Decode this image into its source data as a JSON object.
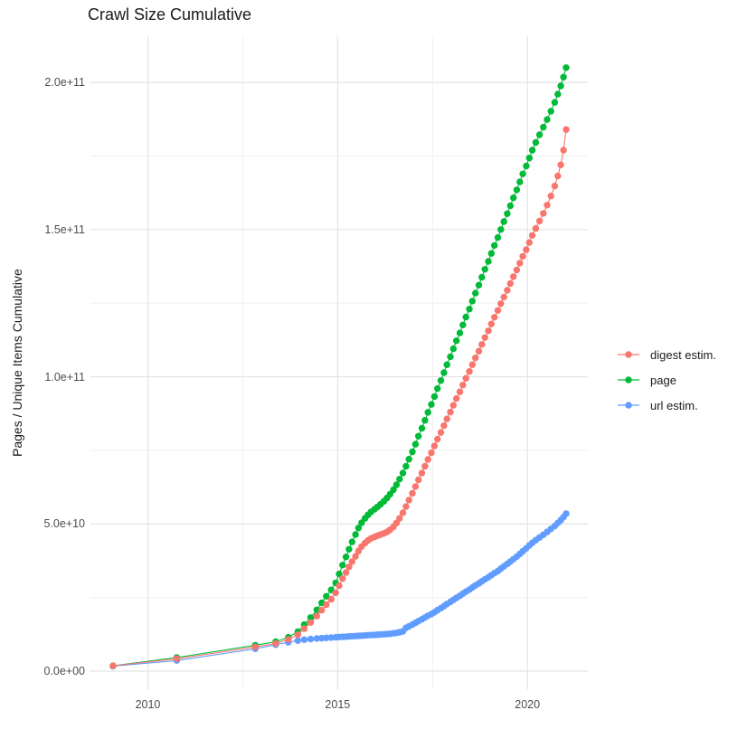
{
  "chart_data": {
    "type": "line",
    "marker": "circle",
    "title": "Crawl Size Cumulative",
    "xlabel": "",
    "ylabel": "Pages / Unique Items Cumulative",
    "unit_note": "point values given in billions (1e9) of pages / unique items",
    "x_unit": "decimal year",
    "xlim": [
      2008.487,
      2021.592
    ],
    "ylim_B": [
      -6.45,
      215.7
    ],
    "grid": {
      "enabled": true,
      "major_color": "#e4e4e4",
      "minor_color": "#efefef"
    },
    "legend_position": "right",
    "x_ticks": {
      "major": [
        2010,
        2015,
        2020
      ],
      "minor": [
        2012.5,
        2017.5
      ],
      "labels": [
        "2010",
        "2015",
        "2020"
      ]
    },
    "y_ticks": {
      "major_B": [
        0,
        50,
        100,
        150,
        200
      ],
      "minor_B": [
        25,
        75,
        125,
        175
      ],
      "labels": [
        "0.0e+00",
        "5.0e+10",
        "1.0e+11",
        "1.5e+11",
        "2.0e+11"
      ]
    },
    "draw_order": [
      1,
      2,
      0
    ],
    "series": [
      {
        "name": "digest estim.",
        "color": "#F8766D",
        "points": [
          [
            2009.08,
            1.8
          ],
          [
            2010.76,
            4.2
          ],
          [
            2012.83,
            8.2
          ],
          [
            2013.37,
            9.4
          ],
          [
            2013.7,
            10.8
          ],
          [
            2013.95,
            12.4
          ],
          [
            2014.12,
            14.4
          ],
          [
            2014.29,
            16.5
          ],
          [
            2014.45,
            18.7
          ],
          [
            2014.58,
            20.7
          ],
          [
            2014.7,
            22.6
          ],
          [
            2014.83,
            24.4
          ],
          [
            2014.95,
            26.6
          ],
          [
            2015.04,
            29.0
          ],
          [
            2015.13,
            31.4
          ],
          [
            2015.22,
            33.5
          ],
          [
            2015.3,
            35.4
          ],
          [
            2015.38,
            37.2
          ],
          [
            2015.47,
            39.0
          ],
          [
            2015.55,
            40.8
          ],
          [
            2015.63,
            42.3
          ],
          [
            2015.72,
            43.5
          ],
          [
            2015.8,
            44.4
          ],
          [
            2015.88,
            45.1
          ],
          [
            2015.97,
            45.6
          ],
          [
            2016.05,
            46.0
          ],
          [
            2016.13,
            46.4
          ],
          [
            2016.22,
            46.8
          ],
          [
            2016.3,
            47.3
          ],
          [
            2016.38,
            48.0
          ],
          [
            2016.47,
            49.0
          ],
          [
            2016.55,
            50.3
          ],
          [
            2016.63,
            51.9
          ],
          [
            2016.72,
            53.8
          ],
          [
            2016.8,
            55.9
          ],
          [
            2016.88,
            58.1
          ],
          [
            2016.97,
            60.4
          ],
          [
            2017.05,
            62.7
          ],
          [
            2017.13,
            65.0
          ],
          [
            2017.22,
            67.3
          ],
          [
            2017.3,
            69.6
          ],
          [
            2017.38,
            71.9
          ],
          [
            2017.47,
            74.2
          ],
          [
            2017.55,
            76.5
          ],
          [
            2017.63,
            78.8
          ],
          [
            2017.72,
            81.1
          ],
          [
            2017.8,
            83.4
          ],
          [
            2017.88,
            85.7
          ],
          [
            2017.97,
            88.0
          ],
          [
            2018.05,
            90.3
          ],
          [
            2018.13,
            92.6
          ],
          [
            2018.22,
            94.9
          ],
          [
            2018.3,
            97.2
          ],
          [
            2018.38,
            99.5
          ],
          [
            2018.47,
            101.8
          ],
          [
            2018.55,
            104.1
          ],
          [
            2018.63,
            106.4
          ],
          [
            2018.72,
            108.7
          ],
          [
            2018.8,
            111.0
          ],
          [
            2018.88,
            113.3
          ],
          [
            2018.97,
            115.6
          ],
          [
            2019.05,
            117.9
          ],
          [
            2019.13,
            120.2
          ],
          [
            2019.22,
            122.5
          ],
          [
            2019.3,
            124.8
          ],
          [
            2019.38,
            127.1
          ],
          [
            2019.47,
            129.4
          ],
          [
            2019.55,
            131.7
          ],
          [
            2019.63,
            134.0
          ],
          [
            2019.72,
            136.3
          ],
          [
            2019.8,
            138.6
          ],
          [
            2019.88,
            140.9
          ],
          [
            2019.97,
            143.2
          ],
          [
            2020.05,
            145.6
          ],
          [
            2020.13,
            148.0
          ],
          [
            2020.22,
            150.4
          ],
          [
            2020.32,
            152.9
          ],
          [
            2020.42,
            155.5
          ],
          [
            2020.52,
            158.3
          ],
          [
            2020.62,
            161.4
          ],
          [
            2020.72,
            164.8
          ],
          [
            2020.8,
            168.2
          ],
          [
            2020.88,
            172.0
          ],
          [
            2020.95,
            177.0
          ],
          [
            2021.02,
            184.0
          ]
        ]
      },
      {
        "name": "page",
        "color": "#00BA38",
        "points": [
          [
            2009.08,
            1.8
          ],
          [
            2010.76,
            4.6
          ],
          [
            2012.83,
            8.8
          ],
          [
            2013.37,
            10.0
          ],
          [
            2013.7,
            11.5
          ],
          [
            2013.95,
            13.4
          ],
          [
            2014.12,
            15.8
          ],
          [
            2014.29,
            18.2
          ],
          [
            2014.45,
            20.8
          ],
          [
            2014.58,
            23.2
          ],
          [
            2014.7,
            25.4
          ],
          [
            2014.83,
            27.6
          ],
          [
            2014.95,
            30.0
          ],
          [
            2015.04,
            33.0
          ],
          [
            2015.13,
            36.0
          ],
          [
            2015.22,
            38.8
          ],
          [
            2015.3,
            41.4
          ],
          [
            2015.38,
            43.9
          ],
          [
            2015.47,
            46.4
          ],
          [
            2015.55,
            48.6
          ],
          [
            2015.63,
            50.4
          ],
          [
            2015.72,
            51.9
          ],
          [
            2015.8,
            53.1
          ],
          [
            2015.88,
            54.1
          ],
          [
            2015.97,
            55.0
          ],
          [
            2016.05,
            55.8
          ],
          [
            2016.13,
            56.7
          ],
          [
            2016.22,
            57.7
          ],
          [
            2016.3,
            58.8
          ],
          [
            2016.38,
            60.1
          ],
          [
            2016.47,
            61.6
          ],
          [
            2016.55,
            63.3
          ],
          [
            2016.63,
            65.2
          ],
          [
            2016.72,
            67.3
          ],
          [
            2016.8,
            69.6
          ],
          [
            2016.88,
            72.0
          ],
          [
            2016.97,
            74.5
          ],
          [
            2017.05,
            77.1
          ],
          [
            2017.13,
            79.8
          ],
          [
            2017.22,
            82.5
          ],
          [
            2017.3,
            85.2
          ],
          [
            2017.38,
            87.9
          ],
          [
            2017.47,
            90.6
          ],
          [
            2017.55,
            93.3
          ],
          [
            2017.63,
            96.0
          ],
          [
            2017.72,
            98.7
          ],
          [
            2017.8,
            101.4
          ],
          [
            2017.88,
            104.1
          ],
          [
            2017.97,
            106.8
          ],
          [
            2018.05,
            109.5
          ],
          [
            2018.13,
            112.2
          ],
          [
            2018.22,
            114.9
          ],
          [
            2018.3,
            117.6
          ],
          [
            2018.38,
            120.3
          ],
          [
            2018.47,
            123.0
          ],
          [
            2018.55,
            125.7
          ],
          [
            2018.63,
            128.4
          ],
          [
            2018.72,
            131.1
          ],
          [
            2018.8,
            133.8
          ],
          [
            2018.88,
            136.5
          ],
          [
            2018.97,
            139.2
          ],
          [
            2019.05,
            141.9
          ],
          [
            2019.13,
            144.6
          ],
          [
            2019.22,
            147.3
          ],
          [
            2019.3,
            150.0
          ],
          [
            2019.38,
            152.7
          ],
          [
            2019.47,
            155.4
          ],
          [
            2019.55,
            158.1
          ],
          [
            2019.63,
            160.8
          ],
          [
            2019.72,
            163.5
          ],
          [
            2019.8,
            166.2
          ],
          [
            2019.88,
            168.9
          ],
          [
            2019.97,
            171.6
          ],
          [
            2020.05,
            174.3
          ],
          [
            2020.13,
            177.0
          ],
          [
            2020.22,
            179.6
          ],
          [
            2020.32,
            182.2
          ],
          [
            2020.42,
            184.8
          ],
          [
            2020.52,
            187.4
          ],
          [
            2020.62,
            190.2
          ],
          [
            2020.72,
            193.2
          ],
          [
            2020.8,
            196.0
          ],
          [
            2020.88,
            198.8
          ],
          [
            2020.95,
            201.8
          ],
          [
            2021.02,
            205.0
          ]
        ]
      },
      {
        "name": "url estim.",
        "color": "#619CFF",
        "points": [
          [
            2009.08,
            1.7
          ],
          [
            2010.76,
            3.6
          ],
          [
            2012.83,
            7.6
          ],
          [
            2013.37,
            9.0
          ],
          [
            2013.7,
            9.8
          ],
          [
            2013.95,
            10.4
          ],
          [
            2014.12,
            10.7
          ],
          [
            2014.29,
            10.9
          ],
          [
            2014.45,
            11.1
          ],
          [
            2014.58,
            11.2
          ],
          [
            2014.7,
            11.3
          ],
          [
            2014.83,
            11.4
          ],
          [
            2014.95,
            11.5
          ],
          [
            2015.04,
            11.6
          ],
          [
            2015.13,
            11.65
          ],
          [
            2015.22,
            11.7
          ],
          [
            2015.3,
            11.8
          ],
          [
            2015.38,
            11.85
          ],
          [
            2015.47,
            11.9
          ],
          [
            2015.55,
            12.0
          ],
          [
            2015.63,
            12.05
          ],
          [
            2015.72,
            12.1
          ],
          [
            2015.8,
            12.2
          ],
          [
            2015.88,
            12.25
          ],
          [
            2015.97,
            12.3
          ],
          [
            2016.05,
            12.4
          ],
          [
            2016.13,
            12.45
          ],
          [
            2016.22,
            12.5
          ],
          [
            2016.3,
            12.6
          ],
          [
            2016.38,
            12.7
          ],
          [
            2016.47,
            12.85
          ],
          [
            2016.55,
            13.0
          ],
          [
            2016.63,
            13.2
          ],
          [
            2016.72,
            13.5
          ],
          [
            2016.8,
            14.7
          ],
          [
            2016.88,
            15.2
          ],
          [
            2016.97,
            15.8
          ],
          [
            2017.05,
            16.4
          ],
          [
            2017.13,
            17.0
          ],
          [
            2017.22,
            17.6
          ],
          [
            2017.3,
            18.2
          ],
          [
            2017.38,
            18.8
          ],
          [
            2017.47,
            19.4
          ],
          [
            2017.55,
            20.0
          ],
          [
            2017.63,
            20.7
          ],
          [
            2017.72,
            21.4
          ],
          [
            2017.8,
            22.1
          ],
          [
            2017.88,
            22.8
          ],
          [
            2017.97,
            23.5
          ],
          [
            2018.05,
            24.2
          ],
          [
            2018.13,
            24.9
          ],
          [
            2018.22,
            25.6
          ],
          [
            2018.3,
            26.3
          ],
          [
            2018.38,
            27.0
          ],
          [
            2018.47,
            27.7
          ],
          [
            2018.55,
            28.4
          ],
          [
            2018.63,
            29.1
          ],
          [
            2018.72,
            29.8
          ],
          [
            2018.8,
            30.5
          ],
          [
            2018.88,
            31.2
          ],
          [
            2018.97,
            31.9
          ],
          [
            2019.05,
            32.6
          ],
          [
            2019.13,
            33.3
          ],
          [
            2019.22,
            34.0
          ],
          [
            2019.3,
            34.8
          ],
          [
            2019.38,
            35.6
          ],
          [
            2019.47,
            36.4
          ],
          [
            2019.55,
            37.2
          ],
          [
            2019.63,
            38.0
          ],
          [
            2019.72,
            38.9
          ],
          [
            2019.8,
            39.8
          ],
          [
            2019.88,
            40.7
          ],
          [
            2019.97,
            41.7
          ],
          [
            2020.05,
            42.7
          ],
          [
            2020.13,
            43.6
          ],
          [
            2020.22,
            44.5
          ],
          [
            2020.32,
            45.4
          ],
          [
            2020.42,
            46.3
          ],
          [
            2020.52,
            47.3
          ],
          [
            2020.62,
            48.3
          ],
          [
            2020.72,
            49.3
          ],
          [
            2020.8,
            50.3
          ],
          [
            2020.88,
            51.3
          ],
          [
            2020.95,
            52.3
          ],
          [
            2021.02,
            53.5
          ]
        ]
      }
    ]
  }
}
